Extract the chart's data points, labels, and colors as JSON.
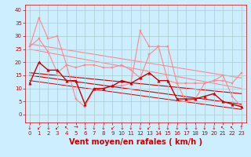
{
  "background_color": "#cceeff",
  "grid_color": "#aacccc",
  "xlabel": "Vent moyen/en rafales ( km/h )",
  "xlabel_color": "#cc0000",
  "xlabel_fontsize": 7,
  "yticks": [
    0,
    5,
    10,
    15,
    20,
    25,
    30,
    35,
    40
  ],
  "xticks": [
    0,
    1,
    2,
    3,
    4,
    5,
    6,
    7,
    8,
    9,
    10,
    11,
    12,
    13,
    14,
    15,
    16,
    17,
    18,
    19,
    20,
    21,
    22,
    23
  ],
  "ylim": [
    -3,
    42
  ],
  "xlim": [
    -0.5,
    23.5
  ],
  "tick_color": "#cc0000",
  "tick_fontsize": 5,
  "series": [
    {
      "x": [
        0,
        1,
        2,
        3,
        4,
        5,
        6,
        7,
        8,
        9,
        10,
        11,
        12,
        13,
        14,
        15,
        16,
        17,
        18,
        19,
        20,
        21,
        22,
        23
      ],
      "y": [
        26,
        37,
        29,
        30,
        19,
        6,
        3,
        10,
        10,
        11,
        11,
        12,
        32,
        26,
        26,
        13,
        12,
        5,
        6,
        12,
        13,
        15,
        7,
        3
      ],
      "color": "#ff8888",
      "linewidth": 0.8,
      "marker": "s",
      "markersize": 1.8,
      "zorder": 2
    },
    {
      "x": [
        0,
        1,
        2,
        3,
        4,
        5,
        6,
        7,
        8,
        9,
        10,
        11,
        12,
        13,
        14,
        15,
        16,
        17,
        18,
        19,
        20,
        21,
        22,
        23
      ],
      "y": [
        26,
        29,
        24,
        16,
        19,
        18,
        19,
        19,
        18,
        18,
        19,
        17,
        14,
        23,
        26,
        26,
        12,
        12,
        12,
        12,
        13,
        13,
        12,
        16
      ],
      "color": "#ff8888",
      "linewidth": 0.8,
      "marker": "s",
      "markersize": 1.8,
      "zorder": 2
    },
    {
      "x": [
        0,
        23
      ],
      "y": [
        27,
        14
      ],
      "color": "#ff8888",
      "linewidth": 0.8,
      "marker": null,
      "markersize": 0,
      "zorder": 1
    },
    {
      "x": [
        0,
        23
      ],
      "y": [
        25,
        10
      ],
      "color": "#ff8888",
      "linewidth": 0.8,
      "marker": null,
      "markersize": 0,
      "zorder": 1
    },
    {
      "x": [
        0,
        1,
        2,
        3,
        4,
        5,
        6,
        7,
        8,
        9,
        10,
        11,
        12,
        13,
        14,
        15,
        16,
        17,
        18,
        19,
        20,
        21,
        22,
        23
      ],
      "y": [
        12,
        20,
        17,
        17,
        13,
        13,
        4,
        10,
        10,
        11,
        13,
        12,
        14,
        16,
        13,
        13,
        6,
        6,
        6,
        7,
        8,
        5,
        4,
        3
      ],
      "color": "#cc0000",
      "linewidth": 1.0,
      "marker": "^",
      "markersize": 2.5,
      "zorder": 3
    },
    {
      "x": [
        0,
        23
      ],
      "y": [
        16,
        8
      ],
      "color": "#cc0000",
      "linewidth": 0.8,
      "marker": null,
      "markersize": 0,
      "zorder": 1
    },
    {
      "x": [
        0,
        23
      ],
      "y": [
        15,
        4
      ],
      "color": "#cc0000",
      "linewidth": 0.8,
      "marker": null,
      "markersize": 0,
      "zorder": 1
    },
    {
      "x": [
        0,
        23
      ],
      "y": [
        13,
        2
      ],
      "color": "#cc0000",
      "linewidth": 0.7,
      "marker": null,
      "markersize": 0,
      "zorder": 1
    }
  ],
  "wind_arrows": {
    "x": [
      0,
      1,
      2,
      3,
      4,
      5,
      6,
      7,
      8,
      9,
      10,
      11,
      12,
      13,
      14,
      15,
      16,
      17,
      18,
      19,
      20,
      21,
      22,
      23
    ],
    "arrows": [
      "↓",
      "↙",
      "↓",
      "↙",
      "↖",
      "→",
      "↓",
      "↓",
      "↓",
      "↙",
      "↓",
      "↓",
      "↓",
      "↙",
      "↓",
      "↓",
      "↓",
      "↓",
      "↓",
      "↓",
      "↓",
      "↖",
      "↖",
      "↑"
    ]
  }
}
